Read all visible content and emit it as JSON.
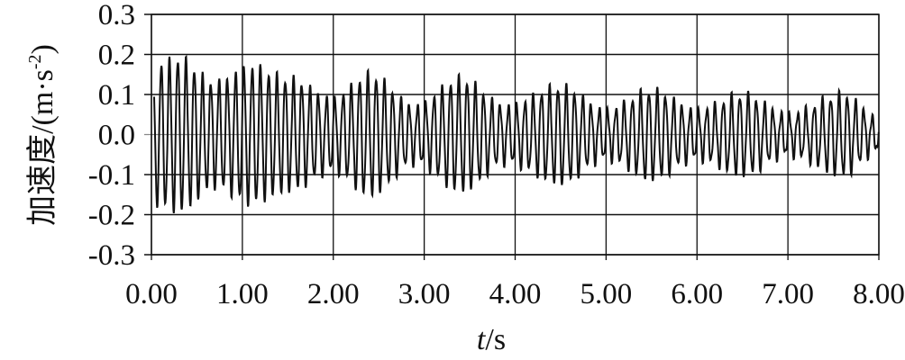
{
  "chart_data": {
    "type": "line",
    "title": "",
    "xlabel_italic": "t",
    "xlabel_unit": "/s",
    "ylabel": "加速度/(m·s",
    "ylabel_sup": "-2",
    "ylabel_close": ")",
    "xlim": [
      0,
      8
    ],
    "ylim": [
      -0.3,
      0.3
    ],
    "x_ticks": [
      "0.00",
      "1.00",
      "2.00",
      "3.00",
      "4.00",
      "5.00",
      "6.00",
      "7.00",
      "8.00"
    ],
    "y_ticks": [
      "0.3",
      "0.2",
      "0.1",
      "0.0",
      "-0.1",
      "-0.2",
      "-0.3"
    ],
    "grid": true,
    "line_color": "#111111",
    "signal": {
      "frequency_hz": 11,
      "envelope": [
        [
          0,
          0.17
        ],
        [
          0.3,
          0.19
        ],
        [
          0.7,
          0.13
        ],
        [
          1.1,
          0.17
        ],
        [
          1.5,
          0.14
        ],
        [
          2.0,
          0.09
        ],
        [
          2.4,
          0.15
        ],
        [
          2.9,
          0.07
        ],
        [
          3.4,
          0.14
        ],
        [
          3.9,
          0.07
        ],
        [
          4.5,
          0.12
        ],
        [
          5.0,
          0.06
        ],
        [
          5.5,
          0.11
        ],
        [
          6.0,
          0.06
        ],
        [
          6.5,
          0.1
        ],
        [
          7.0,
          0.05
        ],
        [
          7.6,
          0.1
        ],
        [
          8.0,
          0.04
        ]
      ]
    }
  }
}
